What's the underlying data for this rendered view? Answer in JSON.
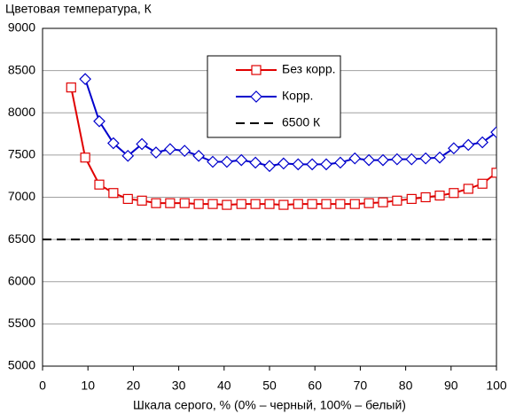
{
  "chart_data": {
    "type": "line",
    "title": "Цветовая температура, К",
    "xlabel": "Шкала серого, % (0% – черный, 100% – белый)",
    "xlim": [
      0,
      100
    ],
    "xticks": [
      0,
      10,
      20,
      30,
      40,
      50,
      60,
      70,
      80,
      90,
      100
    ],
    "ylim": [
      5000,
      9000
    ],
    "yticks": [
      5000,
      5500,
      6000,
      6500,
      7000,
      7500,
      8000,
      8500,
      9000
    ],
    "grid": true,
    "legend": "upper center",
    "series": [
      {
        "name": "Без корр.",
        "color": "#e00000",
        "marker": "square",
        "x": [
          6.3,
          9.4,
          12.5,
          15.6,
          18.8,
          21.9,
          25,
          28.1,
          31.3,
          34.4,
          37.5,
          40.6,
          43.8,
          46.9,
          50,
          53.1,
          56.3,
          59.4,
          62.5,
          65.6,
          68.8,
          71.9,
          75,
          78.1,
          81.3,
          84.4,
          87.5,
          90.6,
          93.8,
          96.9,
          100
        ],
        "values": [
          8300,
          7470,
          7150,
          7050,
          6980,
          6960,
          6930,
          6930,
          6930,
          6920,
          6920,
          6910,
          6920,
          6920,
          6920,
          6910,
          6920,
          6920,
          6920,
          6920,
          6920,
          6930,
          6940,
          6960,
          6980,
          7000,
          7020,
          7050,
          7100,
          7160,
          7290
        ]
      },
      {
        "name": "Корр.",
        "color": "#0000cc",
        "marker": "diamond",
        "x": [
          9.4,
          12.5,
          15.6,
          18.8,
          21.9,
          25,
          28.1,
          31.3,
          34.4,
          37.5,
          40.6,
          43.8,
          46.9,
          50,
          53.1,
          56.3,
          59.4,
          62.5,
          65.6,
          68.8,
          71.9,
          75,
          78.1,
          81.3,
          84.4,
          87.5,
          90.6,
          93.8,
          96.9,
          100
        ],
        "values": [
          8400,
          7900,
          7640,
          7490,
          7630,
          7530,
          7570,
          7550,
          7490,
          7420,
          7420,
          7440,
          7410,
          7370,
          7400,
          7390,
          7390,
          7390,
          7410,
          7460,
          7440,
          7440,
          7450,
          7450,
          7460,
          7470,
          7580,
          7620,
          7650,
          7770
        ]
      },
      {
        "name": "6500 К",
        "color": "#000000",
        "marker": "none",
        "dashed": true,
        "x": [
          0,
          100
        ],
        "values": [
          6500,
          6500
        ]
      }
    ]
  }
}
